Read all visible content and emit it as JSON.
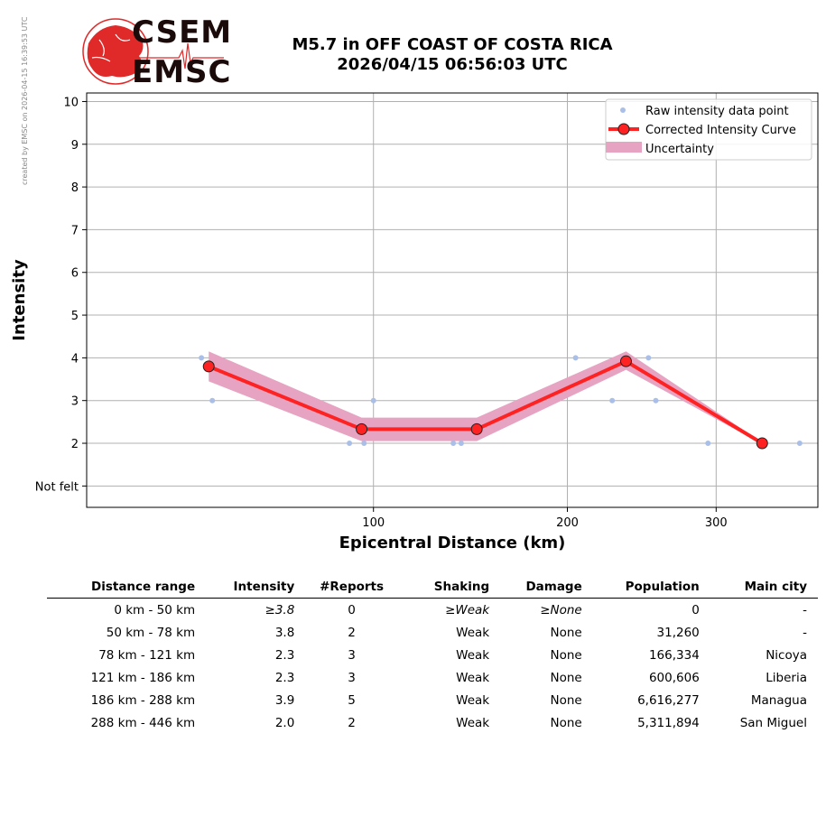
{
  "header": {
    "credit": "created by EMSC on 2026-04-15 16:39:53 UTC",
    "logo_top": "CSEM",
    "logo_bottom": "EMSC",
    "title_line1": "M5.7 in OFF COAST OF COSTA RICA",
    "title_line2": "2026/04/15 06:56:03 UTC"
  },
  "chart_data": {
    "type": "line",
    "xlabel": "Epicentral Distance (km)",
    "ylabel": "Intensity",
    "xlim": [
      15,
      380
    ],
    "ylim": [
      0.5,
      10.2
    ],
    "x_scale": "square-root",
    "x_ticks": [
      100,
      200,
      300
    ],
    "y_ticks": [
      1,
      2,
      3,
      4,
      5,
      6,
      7,
      8,
      9,
      10
    ],
    "y_tick_labels": [
      "Not felt",
      "2",
      "3",
      "4",
      "5",
      "6",
      "7",
      "8",
      "9",
      "10"
    ],
    "grid": true,
    "legend_position": "top-right",
    "colors": {
      "raw": "#aabfe8",
      "curve": "#ff2222",
      "marker_edge": "#222222",
      "uncertainty": "#e6a3c2",
      "grid": "#b0b0b0"
    },
    "series": [
      {
        "name": "Raw intensity data point",
        "kind": "scatter",
        "points": [
          [
            40,
            4
          ],
          [
            43,
            3
          ],
          [
            90,
            2
          ],
          [
            96,
            2
          ],
          [
            100,
            3
          ],
          [
            137,
            2
          ],
          [
            141,
            2
          ],
          [
            205,
            4
          ],
          [
            228,
            3
          ],
          [
            252,
            4
          ],
          [
            257,
            3
          ],
          [
            294,
            2
          ],
          [
            365,
            2
          ]
        ]
      },
      {
        "name": "Corrected Intensity Curve",
        "kind": "line",
        "x": [
          42,
          95,
          149,
          237,
          335
        ],
        "y": [
          3.8,
          2.33,
          2.33,
          3.92,
          2.0
        ]
      },
      {
        "name": "Uncertainty",
        "kind": "band",
        "x": [
          42,
          95,
          149,
          237,
          335
        ],
        "lower": [
          3.45,
          2.05,
          2.05,
          3.72,
          1.98
        ],
        "upper": [
          4.15,
          2.6,
          2.6,
          4.15,
          2.02
        ]
      }
    ]
  },
  "table": {
    "headers": [
      "Distance range",
      "Intensity",
      "#Reports",
      "Shaking",
      "Damage",
      "Population",
      "Main city"
    ],
    "rows": [
      [
        "0 km -   50 km",
        "≥3.8",
        "0",
        "≥Weak",
        "≥None",
        "0",
        "-"
      ],
      [
        "50 km -   78 km",
        "3.8",
        "2",
        "Weak",
        "None",
        "31,260",
        "-"
      ],
      [
        "78 km -  121 km",
        "2.3",
        "3",
        "Weak",
        "None",
        "166,334",
        "Nicoya"
      ],
      [
        "121 km -  186 km",
        "2.3",
        "3",
        "Weak",
        "None",
        "600,606",
        "Liberia"
      ],
      [
        "186 km -  288 km",
        "3.9",
        "5",
        "Weak",
        "None",
        "6,616,277",
        "Managua"
      ],
      [
        "288 km -  446 km",
        "2.0",
        "2",
        "Weak",
        "None",
        "5,311,894",
        "San Miguel"
      ]
    ]
  }
}
